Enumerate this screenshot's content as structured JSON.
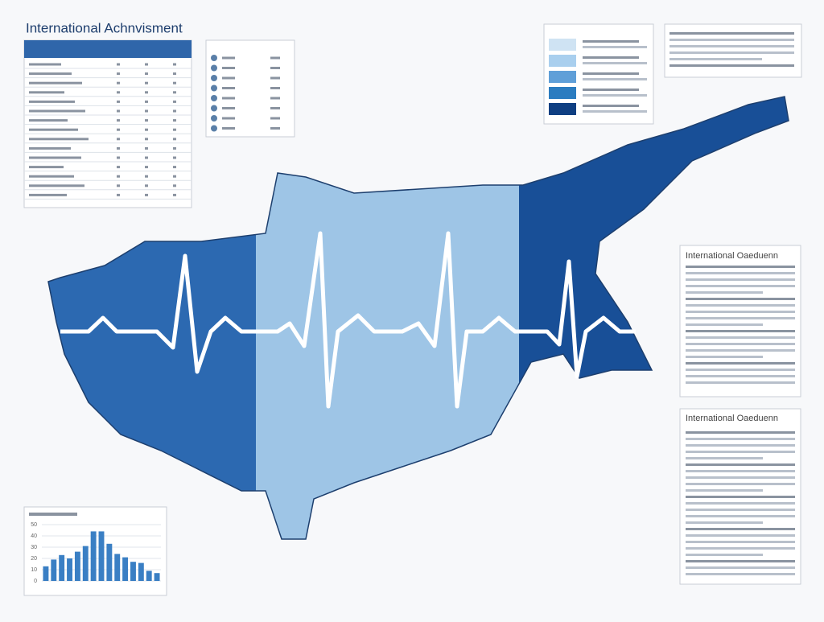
{
  "title": "International Achnvisment",
  "panels": [
    {
      "title": "International Oaeduenn"
    },
    {
      "title": "International Oaeduenn"
    }
  ],
  "chart_data": {
    "type": "bar",
    "values": [
      13,
      19,
      23,
      20,
      26,
      31,
      44,
      44,
      33,
      24,
      21,
      17,
      16,
      9,
      7
    ],
    "color": "#3a7fc4",
    "ylim": [
      0,
      50
    ],
    "yticks": [
      0,
      10,
      20,
      30,
      40,
      50
    ],
    "grid": true
  }
}
